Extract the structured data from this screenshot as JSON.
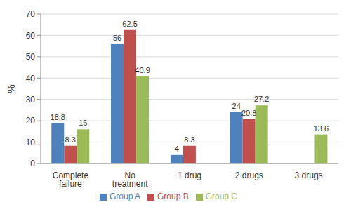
{
  "chart_data": {
    "type": "bar",
    "y_label": "%",
    "categories": [
      "Complete failure",
      "No treatment",
      "1 drug",
      "2 drugs",
      "3 drugs"
    ],
    "series": [
      {
        "name": "Group A",
        "color": "#4f81bd",
        "values": [
          18.8,
          56,
          4,
          24,
          0
        ]
      },
      {
        "name": "Group B",
        "color": "#c0504d",
        "values": [
          8.3,
          62.5,
          8.3,
          20.8,
          0
        ]
      },
      {
        "name": "Group C",
        "color": "#9bbb59",
        "values": [
          16,
          40.9,
          0,
          27.2,
          13.6
        ]
      }
    ],
    "ylim": [
      0,
      70
    ],
    "yticks": [
      0,
      10,
      20,
      30,
      40,
      50,
      60,
      70
    ],
    "grid": true,
    "legend": "bottom",
    "data_labels": true
  }
}
